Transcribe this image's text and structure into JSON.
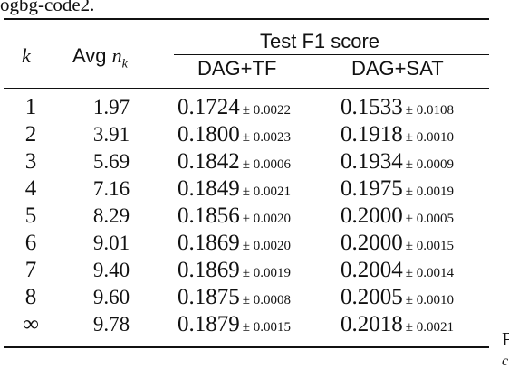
{
  "caption_fragment": "ogbg-code2.",
  "table": {
    "header": {
      "k": "k",
      "avg_prefix": "Avg ",
      "avg_var": "n",
      "avg_sub": "k",
      "group": "Test F1 score",
      "col_tf": "DAG+TF",
      "col_sat": "DAG+SAT"
    },
    "rows": [
      {
        "k": "1",
        "avg": "1.97",
        "tf": "0.1724",
        "tf_pm": "± 0.0022",
        "sat": "0.1533",
        "sat_pm": "± 0.0108"
      },
      {
        "k": "2",
        "avg": "3.91",
        "tf": "0.1800",
        "tf_pm": "± 0.0023",
        "sat": "0.1918",
        "sat_pm": "± 0.0010"
      },
      {
        "k": "3",
        "avg": "5.69",
        "tf": "0.1842",
        "tf_pm": "± 0.0006",
        "sat": "0.1934",
        "sat_pm": "± 0.0009"
      },
      {
        "k": "4",
        "avg": "7.16",
        "tf": "0.1849",
        "tf_pm": "± 0.0021",
        "sat": "0.1975",
        "sat_pm": "± 0.0019"
      },
      {
        "k": "5",
        "avg": "8.29",
        "tf": "0.1856",
        "tf_pm": "± 0.0020",
        "sat": "0.2000",
        "sat_pm": "± 0.0005"
      },
      {
        "k": "6",
        "avg": "9.01",
        "tf": "0.1869",
        "tf_pm": "± 0.0020",
        "sat": "0.2000",
        "sat_pm": "± 0.0015"
      },
      {
        "k": "7",
        "avg": "9.40",
        "tf": "0.1869",
        "tf_pm": "± 0.0019",
        "sat": "0.2004",
        "sat_pm": "± 0.0014"
      },
      {
        "k": "8",
        "avg": "9.60",
        "tf": "0.1875",
        "tf_pm": "± 0.0008",
        "sat": "0.2005",
        "sat_pm": "± 0.0010"
      },
      {
        "k": "∞",
        "avg": "9.78",
        "tf": "0.1879",
        "tf_pm": "± 0.0015",
        "sat": "0.2018",
        "sat_pm": "± 0.0021"
      }
    ]
  },
  "side_fragment_1": "F",
  "side_fragment_2": "c"
}
